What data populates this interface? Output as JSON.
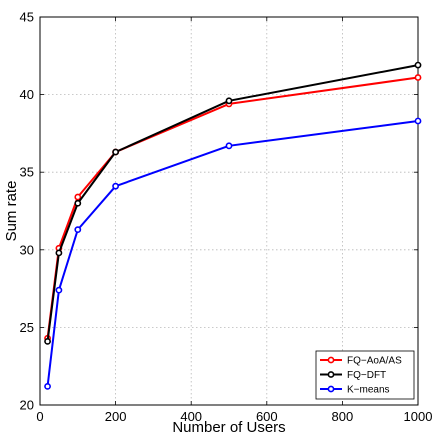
{
  "chart_data": {
    "type": "line",
    "xlabel": "Number of Users",
    "ylabel": "Sum rate",
    "xlim": [
      0,
      1000
    ],
    "ylim": [
      20,
      45
    ],
    "xticks": [
      0,
      200,
      400,
      600,
      800,
      1000
    ],
    "yticks": [
      20,
      25,
      30,
      35,
      40,
      45
    ],
    "grid": true,
    "legend_position": "bottom-right",
    "series": [
      {
        "name": "FQ−AoA/AS",
        "color": "#ff0000",
        "x": [
          20,
          50,
          100,
          200,
          500,
          1000
        ],
        "y": [
          24.3,
          30.1,
          33.4,
          36.3,
          39.4,
          41.1
        ]
      },
      {
        "name": "FQ−DFT",
        "color": "#000000",
        "x": [
          20,
          50,
          100,
          200,
          500,
          1000
        ],
        "y": [
          24.1,
          29.8,
          33.0,
          36.3,
          39.6,
          41.9
        ]
      },
      {
        "name": "K−means",
        "color": "#0000ff",
        "x": [
          20,
          50,
          100,
          200,
          500,
          1000
        ],
        "y": [
          21.2,
          27.4,
          31.3,
          34.1,
          36.7,
          38.3
        ]
      }
    ]
  }
}
